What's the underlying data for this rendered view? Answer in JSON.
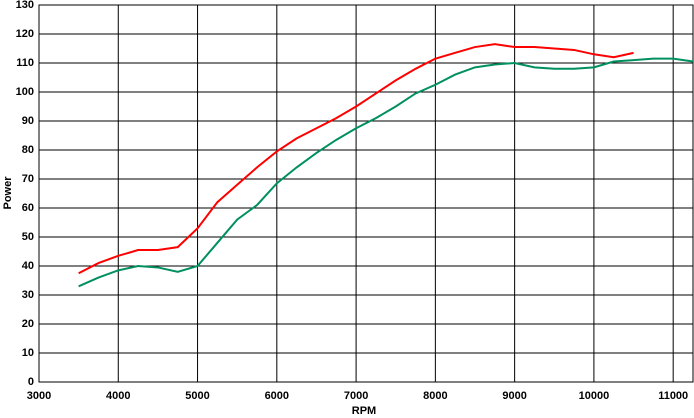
{
  "chart_data": {
    "type": "line",
    "x_label": "RPM",
    "y_label": "Power",
    "x": [
      3500,
      3750,
      4000,
      4250,
      4500,
      4750,
      5000,
      5250,
      5500,
      5750,
      6000,
      6250,
      6500,
      6750,
      7000,
      7250,
      7500,
      7750,
      8000,
      8250,
      8500,
      8750,
      9000,
      9250,
      9500,
      9750,
      10000,
      10250,
      10500,
      10750,
      11000,
      11250
    ],
    "series": [
      {
        "color": "#ff0000",
        "values": [
          37.5,
          41,
          43.5,
          45.5,
          45.5,
          46.5,
          53,
          62,
          68,
          74,
          79.5,
          84,
          87.5,
          91,
          95,
          99.5,
          104,
          108,
          111.5,
          113.5,
          115.5,
          116.5,
          115.5,
          115.5,
          115,
          114.5,
          113,
          112,
          113.5,
          null,
          null,
          null
        ]
      },
      {
        "color": "#009060",
        "values": [
          33,
          36,
          38.5,
          40,
          39.5,
          38,
          40,
          48,
          56,
          61,
          68.5,
          74,
          79,
          83.5,
          87.5,
          91,
          95,
          99.5,
          102.5,
          106,
          108.5,
          109.5,
          110,
          108.5,
          108,
          108,
          108.5,
          110.5,
          111,
          111.5,
          111.5,
          110.5
        ]
      }
    ],
    "xlim": [
      3000,
      11250
    ],
    "ylim": [
      0,
      130
    ],
    "xticks": [
      3000,
      4000,
      5000,
      6000,
      7000,
      8000,
      9000,
      10000,
      11000
    ],
    "yticks": [
      0,
      10,
      20,
      30,
      40,
      50,
      60,
      70,
      80,
      90,
      100,
      110,
      120,
      130
    ],
    "grid": true
  }
}
